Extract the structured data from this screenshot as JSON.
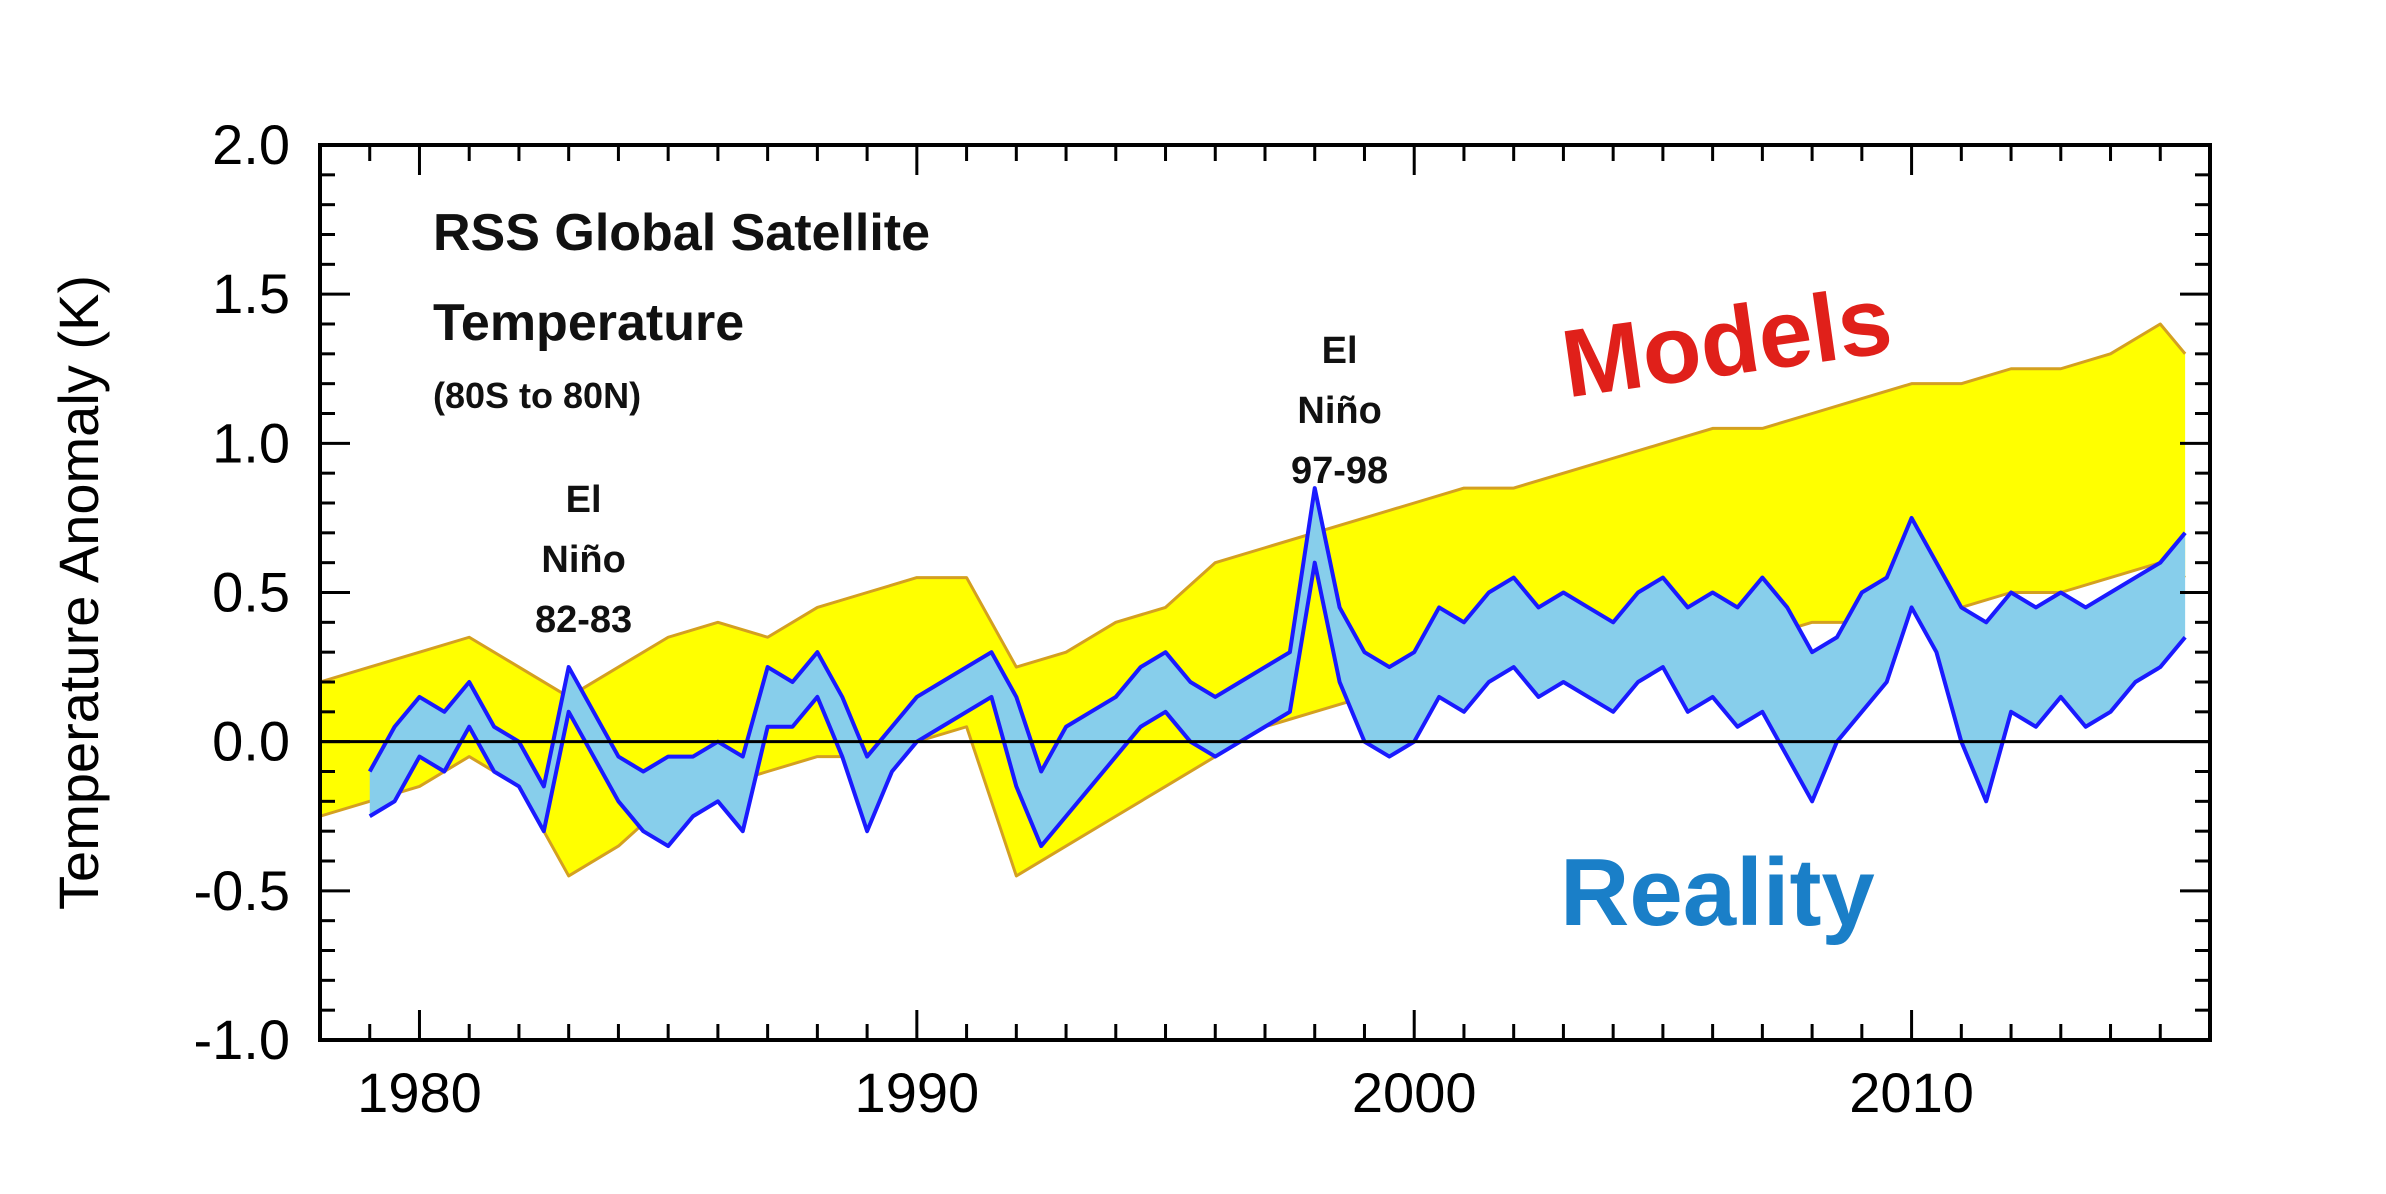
{
  "chart_data": {
    "type": "area",
    "title_lines": [
      "RSS Global Satellite",
      "Temperature"
    ],
    "subtitle": "(80S to 80N)",
    "xlabel": "",
    "ylabel": "Temperature Anomaly (K)",
    "xlim": [
      1978,
      2016
    ],
    "ylim": [
      -1.0,
      2.0
    ],
    "x_ticks": [
      1980,
      1990,
      2000,
      2010
    ],
    "x_tick_labels": [
      "1980",
      "1990",
      "2000",
      "2010"
    ],
    "y_ticks": [
      -1.0,
      -0.5,
      0.0,
      0.5,
      1.0,
      1.5,
      2.0
    ],
    "y_tick_labels": [
      "-1.0",
      "-0.5",
      "0.0",
      "0.5",
      "1.0",
      "1.5",
      "2.0"
    ],
    "grid": false,
    "zero_line": true,
    "colors": {
      "models_fill": "#ffff00",
      "models_edge": "#d4a020",
      "reality_fill": "#87ceeb",
      "reality_edge": "#1a1aff",
      "models_label": "#e0201a",
      "reality_label": "#1a7fc8"
    },
    "series": [
      {
        "name": "Models",
        "kind": "band",
        "x": [
          1978.0,
          1979.0,
          1980.0,
          1981.0,
          1982.0,
          1983.0,
          1984.0,
          1985.0,
          1986.0,
          1987.0,
          1988.0,
          1989.0,
          1990.0,
          1991.0,
          1992.0,
          1993.0,
          1994.0,
          1995.0,
          1996.0,
          1997.0,
          1998.0,
          1999.0,
          2000.0,
          2001.0,
          2002.0,
          2003.0,
          2004.0,
          2005.0,
          2006.0,
          2007.0,
          2008.0,
          2009.0,
          2010.0,
          2011.0,
          2012.0,
          2013.0,
          2014.0,
          2015.0,
          2015.5
        ],
        "upper": [
          0.2,
          0.25,
          0.3,
          0.35,
          0.25,
          0.15,
          0.25,
          0.35,
          0.4,
          0.35,
          0.45,
          0.5,
          0.55,
          0.55,
          0.25,
          0.3,
          0.4,
          0.45,
          0.6,
          0.65,
          0.7,
          0.75,
          0.8,
          0.85,
          0.85,
          0.9,
          0.95,
          1.0,
          1.05,
          1.05,
          1.1,
          1.15,
          1.2,
          1.2,
          1.25,
          1.25,
          1.3,
          1.4,
          1.3
        ],
        "lower": [
          -0.25,
          -0.2,
          -0.15,
          -0.05,
          -0.15,
          -0.45,
          -0.35,
          -0.2,
          -0.15,
          -0.1,
          -0.05,
          -0.05,
          0.0,
          0.05,
          -0.45,
          -0.35,
          -0.25,
          -0.15,
          -0.05,
          0.05,
          0.1,
          0.15,
          0.2,
          0.25,
          0.25,
          0.3,
          0.3,
          0.35,
          0.35,
          0.35,
          0.4,
          0.4,
          0.45,
          0.45,
          0.5,
          0.5,
          0.55,
          0.6,
          0.55
        ]
      },
      {
        "name": "Reality",
        "kind": "band",
        "x": [
          1979.0,
          1979.5,
          1980.0,
          1980.5,
          1981.0,
          1981.5,
          1982.0,
          1982.5,
          1983.0,
          1983.5,
          1984.0,
          1984.5,
          1985.0,
          1985.5,
          1986.0,
          1986.5,
          1987.0,
          1987.5,
          1988.0,
          1988.5,
          1989.0,
          1989.5,
          1990.0,
          1990.5,
          1991.0,
          1991.5,
          1992.0,
          1992.5,
          1993.0,
          1993.5,
          1994.0,
          1994.5,
          1995.0,
          1995.5,
          1996.0,
          1996.5,
          1997.0,
          1997.5,
          1998.0,
          1998.5,
          1999.0,
          1999.5,
          2000.0,
          2000.5,
          2001.0,
          2001.5,
          2002.0,
          2002.5,
          2003.0,
          2003.5,
          2004.0,
          2004.5,
          2005.0,
          2005.5,
          2006.0,
          2006.5,
          2007.0,
          2007.5,
          2008.0,
          2008.5,
          2009.0,
          2009.5,
          2010.0,
          2010.5,
          2011.0,
          2011.5,
          2012.0,
          2012.5,
          2013.0,
          2013.5,
          2014.0,
          2014.5,
          2015.0,
          2015.5
        ],
        "upper": [
          -0.1,
          0.05,
          0.15,
          0.1,
          0.2,
          0.05,
          0.0,
          -0.15,
          0.25,
          0.1,
          -0.05,
          -0.1,
          -0.05,
          -0.05,
          0.0,
          -0.05,
          0.25,
          0.2,
          0.3,
          0.15,
          -0.05,
          0.05,
          0.15,
          0.2,
          0.25,
          0.3,
          0.15,
          -0.1,
          0.05,
          0.1,
          0.15,
          0.25,
          0.3,
          0.2,
          0.15,
          0.2,
          0.25,
          0.3,
          0.85,
          0.45,
          0.3,
          0.25,
          0.3,
          0.45,
          0.4,
          0.5,
          0.55,
          0.45,
          0.5,
          0.45,
          0.4,
          0.5,
          0.55,
          0.45,
          0.5,
          0.45,
          0.55,
          0.45,
          0.3,
          0.35,
          0.5,
          0.55,
          0.75,
          0.6,
          0.45,
          0.4,
          0.5,
          0.45,
          0.5,
          0.45,
          0.5,
          0.55,
          0.6,
          0.7
        ],
        "lower": [
          -0.25,
          -0.2,
          -0.05,
          -0.1,
          0.05,
          -0.1,
          -0.15,
          -0.3,
          0.1,
          -0.05,
          -0.2,
          -0.3,
          -0.35,
          -0.25,
          -0.2,
          -0.3,
          0.05,
          0.05,
          0.15,
          -0.05,
          -0.3,
          -0.1,
          0.0,
          0.05,
          0.1,
          0.15,
          -0.15,
          -0.35,
          -0.25,
          -0.15,
          -0.05,
          0.05,
          0.1,
          0.0,
          -0.05,
          0.0,
          0.05,
          0.1,
          0.6,
          0.2,
          0.0,
          -0.05,
          0.0,
          0.15,
          0.1,
          0.2,
          0.25,
          0.15,
          0.2,
          0.15,
          0.1,
          0.2,
          0.25,
          0.1,
          0.15,
          0.05,
          0.1,
          -0.05,
          -0.2,
          0.0,
          0.1,
          0.2,
          0.45,
          0.3,
          0.0,
          -0.2,
          0.1,
          0.05,
          0.15,
          0.05,
          0.1,
          0.2,
          0.25,
          0.35
        ]
      }
    ],
    "annotations": [
      {
        "lines": [
          "El",
          "Niño",
          "82-83"
        ],
        "x": 1983.3,
        "y": 0.77
      },
      {
        "lines": [
          "El",
          "Niño",
          "97-98"
        ],
        "x": 1998.5,
        "y": 1.27
      }
    ],
    "series_labels": {
      "models": "Models",
      "reality": "Reality"
    }
  }
}
